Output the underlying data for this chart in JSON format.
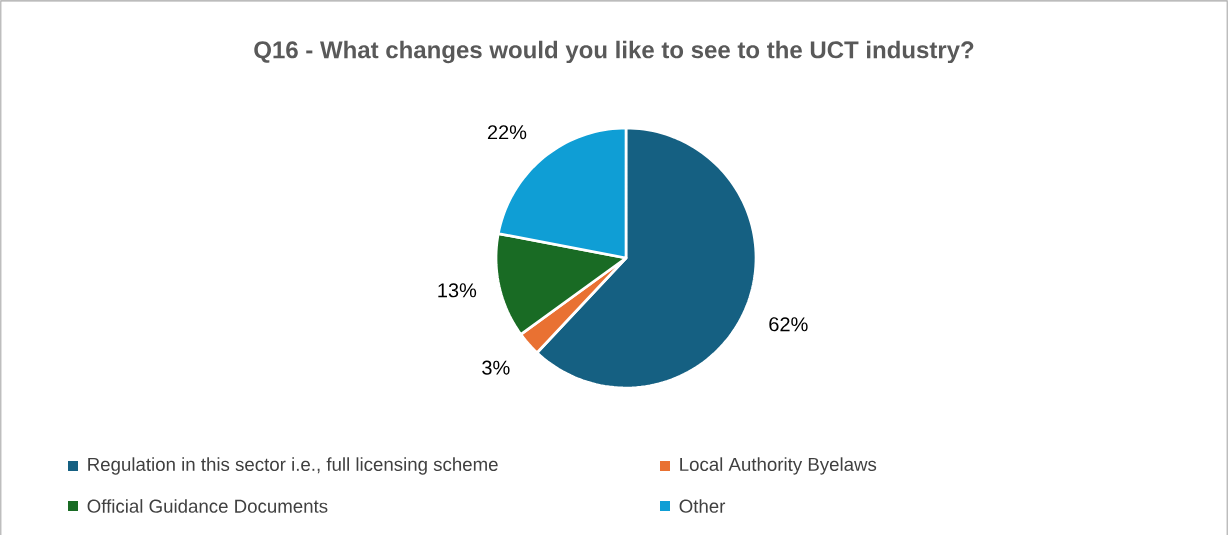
{
  "chart_data": {
    "type": "pie",
    "title": "Q16 - What changes would you like to see to the UCT industry?",
    "categories": [
      "Regulation in this sector i.e., full licensing scheme",
      "Local Authority Byelaws",
      "Official Guidance Documents",
      "Other"
    ],
    "values": [
      62,
      3,
      13,
      22
    ],
    "colors": [
      "#156082",
      "#e97132",
      "#196b24",
      "#0f9ed5"
    ],
    "value_labels": [
      "62%",
      "3%",
      "13%",
      "22%"
    ],
    "legend": "bottom"
  }
}
